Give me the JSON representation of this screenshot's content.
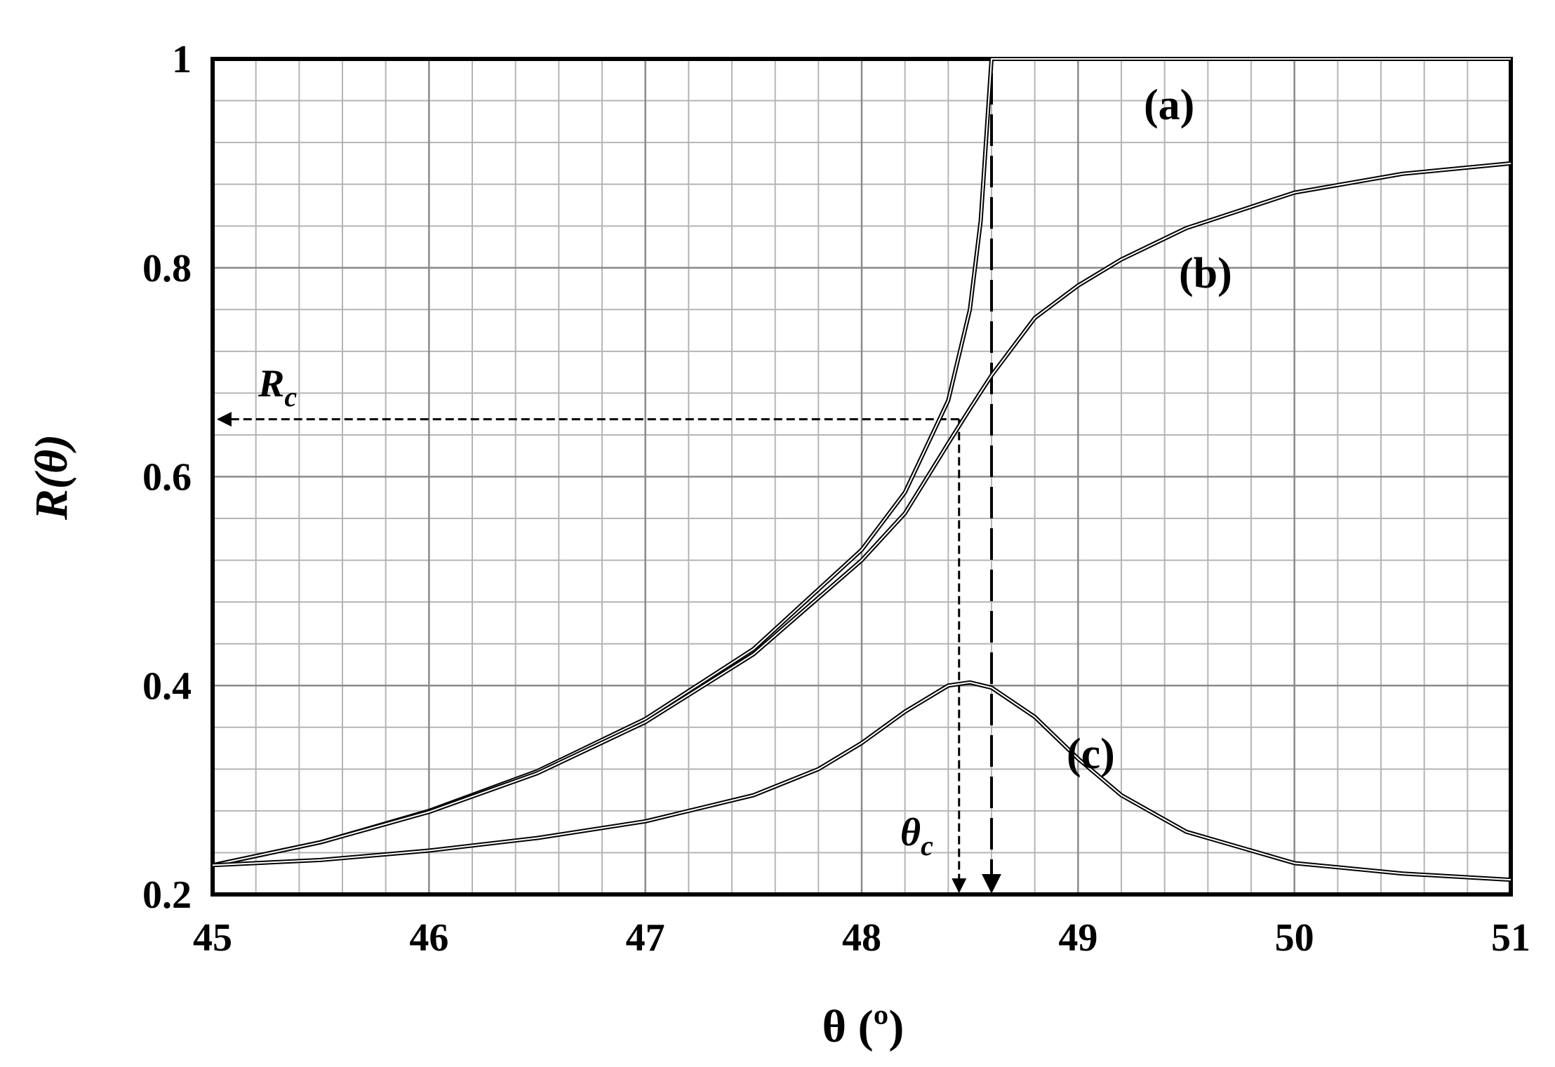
{
  "chart_data": {
    "type": "line",
    "x_label": "θ (º)",
    "y_label": "R(θ)",
    "xlim": [
      45,
      51
    ],
    "ylim": [
      0.2,
      1
    ],
    "xticks": [
      45,
      46,
      47,
      48,
      49,
      50,
      51
    ],
    "yticks": [
      0.2,
      0.4,
      0.6,
      0.8,
      1
    ],
    "grid": true,
    "color": "#000000",
    "series": [
      {
        "name": "(a)",
        "x": [
          45,
          45.5,
          46,
          46.5,
          47,
          47.5,
          48,
          48.2,
          48.4,
          48.5,
          48.55,
          48.6,
          49,
          50,
          51
        ],
        "values": [
          0.228,
          0.25,
          0.28,
          0.318,
          0.368,
          0.435,
          0.53,
          0.585,
          0.673,
          0.76,
          0.845,
          1,
          1,
          1,
          1
        ]
      },
      {
        "name": "(b)",
        "x": [
          45,
          45.5,
          46,
          46.5,
          47,
          47.5,
          48,
          48.2,
          48.4,
          48.5,
          48.6,
          48.8,
          49,
          49.2,
          49.5,
          50,
          50.5,
          51
        ],
        "values": [
          0.228,
          0.25,
          0.279,
          0.316,
          0.365,
          0.43,
          0.52,
          0.565,
          0.632,
          0.665,
          0.697,
          0.752,
          0.783,
          0.808,
          0.838,
          0.872,
          0.89,
          0.9
        ]
      },
      {
        "name": "(c)",
        "x": [
          45,
          45.5,
          46,
          46.5,
          47,
          47.5,
          47.8,
          48,
          48.2,
          48.4,
          48.5,
          48.6,
          48.8,
          49,
          49.2,
          49.5,
          50,
          50.5,
          51
        ],
        "values": [
          0.228,
          0.233,
          0.242,
          0.254,
          0.27,
          0.295,
          0.32,
          0.345,
          0.375,
          0.4,
          0.403,
          0.398,
          0.37,
          0.33,
          0.295,
          0.26,
          0.23,
          0.22,
          0.214
        ]
      }
    ],
    "reflectance_marker": {
      "symbol": "R",
      "subscript": "c",
      "value": 0.655
    },
    "angle_marker": {
      "symbol": "θ",
      "subscript": "c",
      "value": 48.45
    },
    "step_angle": 48.6
  }
}
